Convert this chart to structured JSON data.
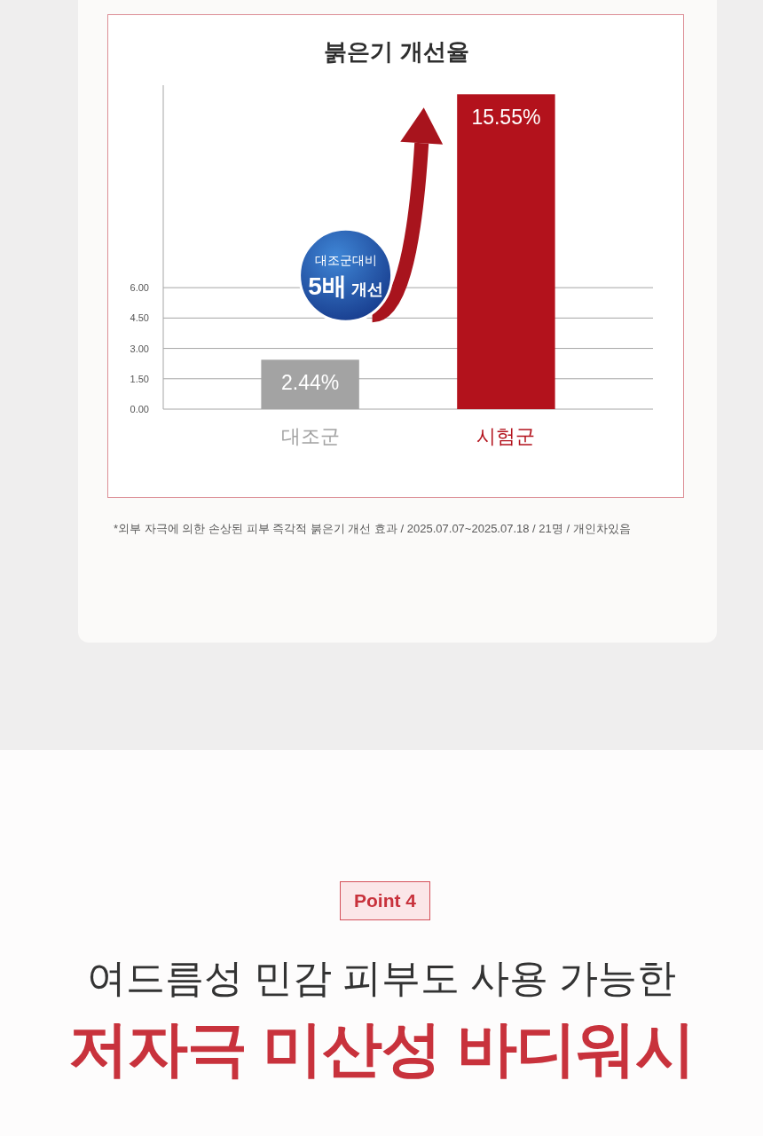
{
  "chart_data": {
    "type": "bar",
    "title": "붉은기 개선율",
    "categories": [
      "대조군",
      "시험군"
    ],
    "values": [
      2.44,
      15.55
    ],
    "colors": [
      "#a3a3a3",
      "#b3121c"
    ],
    "value_labels": [
      "2.44%",
      "15.55%"
    ],
    "ylim": [
      0,
      16
    ],
    "yticks": [
      {
        "value": 0,
        "label": "0.00"
      },
      {
        "value": 1.5,
        "label": "1.50"
      },
      {
        "value": 3,
        "label": "3.00"
      },
      {
        "value": 4.5,
        "label": "4.50"
      },
      {
        "value": 6,
        "label": "6.00"
      }
    ],
    "grid": "y",
    "annotations": [
      "대조군대비",
      "5배 개선",
      "*외부 자극에 의한 손상된 피부 즉각적 붉은기 개선 효과 / 2025.07.07~2025.07.18 / 21명 / 개인차있음",
      "Point 4",
      "여드름성 민감 피부도 사용 가능한",
      "저자극 미산성 바디워시"
    ]
  }
}
